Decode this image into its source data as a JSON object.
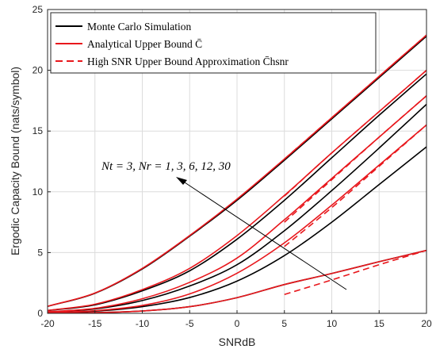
{
  "chart_data": {
    "type": "line",
    "xlabel": "SNRdB",
    "ylabel": "Ergodic Capacity Bound (nats/symbol)",
    "xlim": [
      -20,
      20
    ],
    "ylim": [
      0,
      25
    ],
    "xticks": [
      "-20",
      "-15",
      "-10",
      "-5",
      "0",
      "5",
      "10",
      "15",
      "20"
    ],
    "yticks": [
      "0",
      "5",
      "10",
      "15",
      "20",
      "25"
    ],
    "grid": true,
    "legend_position": "top-left",
    "legend": [
      {
        "label": "Monte Carlo Simulation",
        "color": "#000000",
        "style": "solid"
      },
      {
        "label": "Analytical Upper Bound C̄",
        "color": "#e8171c",
        "style": "solid"
      },
      {
        "label": "High SNR Upper Bound Approximation C̄hsnr",
        "color": "#e8171c",
        "style": "dashed"
      }
    ],
    "annotation": "Nt = 3, Nr = 1, 3, 6, 12, 30",
    "x": [
      -20,
      -15,
      -10,
      -5,
      0,
      5,
      10,
      15,
      20
    ],
    "series": [
      {
        "kind": "monte_carlo",
        "color": "#000000",
        "values": [
          0.02,
          0.06,
          0.19,
          0.55,
          1.29,
          2.37,
          3.28,
          4.25,
          5.18
        ]
      },
      {
        "kind": "monte_carlo",
        "color": "#000000",
        "values": [
          0.06,
          0.18,
          0.55,
          1.3,
          2.65,
          4.75,
          7.5,
          10.6,
          13.7
        ]
      },
      {
        "kind": "monte_carlo",
        "color": "#000000",
        "values": [
          0.11,
          0.36,
          1.05,
          2.25,
          4.0,
          6.8,
          10.1,
          13.6,
          17.2
        ]
      },
      {
        "kind": "monte_carlo",
        "color": "#000000",
        "values": [
          0.23,
          0.7,
          1.85,
          3.5,
          6.1,
          9.3,
          12.8,
          16.3,
          19.7
        ]
      },
      {
        "kind": "monte_carlo",
        "color": "#000000",
        "values": [
          0.57,
          1.65,
          3.65,
          6.35,
          9.3,
          12.6,
          16.0,
          19.4,
          22.8
        ]
      },
      {
        "kind": "analytical",
        "color": "#e8171c",
        "values": [
          0.02,
          0.06,
          0.19,
          0.55,
          1.29,
          2.37,
          3.28,
          4.25,
          5.18
        ]
      },
      {
        "kind": "analytical",
        "color": "#e8171c",
        "values": [
          0.07,
          0.22,
          0.65,
          1.6,
          3.3,
          5.8,
          8.9,
          12.2,
          15.5
        ]
      },
      {
        "kind": "analytical",
        "color": "#e8171c",
        "values": [
          0.13,
          0.41,
          1.2,
          2.55,
          4.55,
          7.7,
          11.1,
          14.5,
          17.9
        ]
      },
      {
        "kind": "analytical",
        "color": "#e8171c",
        "values": [
          0.24,
          0.75,
          1.95,
          3.7,
          6.4,
          9.7,
          13.2,
          16.6,
          20.0
        ]
      },
      {
        "kind": "analytical",
        "color": "#e8171c",
        "values": [
          0.58,
          1.67,
          3.7,
          6.4,
          9.4,
          12.7,
          16.1,
          19.5,
          22.9
        ]
      },
      {
        "kind": "high_snr",
        "color": "#e8171c",
        "x": [
          5,
          10,
          15,
          20
        ],
        "values": [
          1.55,
          2.75,
          4.0,
          5.18
        ]
      },
      {
        "kind": "high_snr",
        "color": "#e8171c",
        "x": [
          5,
          10,
          15,
          20
        ],
        "values": [
          5.5,
          8.7,
          12.1,
          15.5
        ]
      },
      {
        "kind": "high_snr",
        "color": "#e8171c",
        "x": [
          5,
          10,
          15,
          20
        ],
        "values": [
          7.5,
          11.0,
          14.5,
          17.9
        ]
      },
      {
        "kind": "high_snr",
        "color": "#e8171c",
        "x": [
          5,
          10,
          15,
          20
        ],
        "values": [
          9.65,
          13.2,
          16.6,
          20.0
        ]
      },
      {
        "kind": "high_snr",
        "color": "#e8171c",
        "x": [
          5,
          10,
          15,
          20
        ],
        "values": [
          12.7,
          16.1,
          19.5,
          22.9
        ]
      }
    ]
  }
}
